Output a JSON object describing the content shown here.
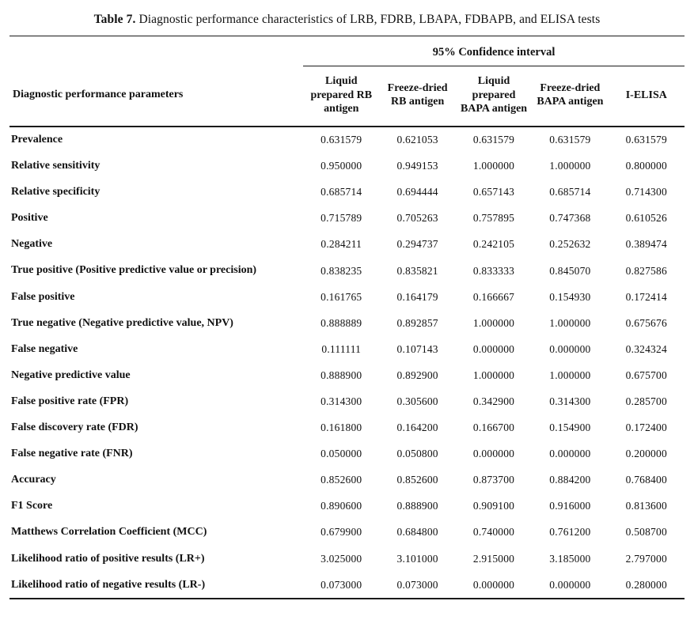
{
  "colors": {
    "text": "#111111",
    "background": "#ffffff",
    "rule": "#1a1a1a"
  },
  "caption": {
    "label": "Table 7.",
    "text": "Diagnostic performance characteristics of LRB, FDRB, LBAPA, FDBAPB, and ELISA tests"
  },
  "table": {
    "group_header": "95% Confidence interval",
    "param_header": "Diagnostic performance parameters",
    "columns": [
      "Liquid prepared RB antigen",
      "Freeze-dried RB antigen",
      "Liquid prepared BAPA antigen",
      "Freeze-dried BAPA antigen",
      "I-ELISA"
    ],
    "rows": [
      {
        "param": "Prevalence",
        "values": [
          "0.631579",
          "0.621053",
          "0.631579",
          "0.631579",
          "0.631579"
        ]
      },
      {
        "param": "Relative sensitivity",
        "values": [
          "0.950000",
          "0.949153",
          "1.000000",
          "1.000000",
          "0.800000"
        ]
      },
      {
        "param": "Relative specificity",
        "values": [
          "0.685714",
          "0.694444",
          "0.657143",
          "0.685714",
          "0.714300"
        ]
      },
      {
        "param": "Positive",
        "values": [
          "0.715789",
          "0.705263",
          "0.757895",
          "0.747368",
          "0.610526"
        ]
      },
      {
        "param": "Negative",
        "values": [
          "0.284211",
          "0.294737",
          "0.242105",
          "0.252632",
          "0.389474"
        ]
      },
      {
        "param": "True positive (Positive predictive value or precision)",
        "values": [
          "0.838235",
          "0.835821",
          "0.833333",
          "0.845070",
          "0.827586"
        ]
      },
      {
        "param": "False positive",
        "values": [
          "0.161765",
          "0.164179",
          "0.166667",
          "0.154930",
          "0.172414"
        ]
      },
      {
        "param": "True negative (Negative predictive value, NPV)",
        "values": [
          "0.888889",
          "0.892857",
          "1.000000",
          "1.000000",
          "0.675676"
        ]
      },
      {
        "param": "False negative",
        "values": [
          "0.111111",
          "0.107143",
          "0.000000",
          "0.000000",
          "0.324324"
        ]
      },
      {
        "param": "Negative predictive value",
        "values": [
          "0.888900",
          "0.892900",
          "1.000000",
          "1.000000",
          "0.675700"
        ]
      },
      {
        "param": "False positive rate (FPR)",
        "values": [
          "0.314300",
          "0.305600",
          "0.342900",
          "0.314300",
          "0.285700"
        ]
      },
      {
        "param": "False discovery rate (FDR)",
        "values": [
          "0.161800",
          "0.164200",
          "0.166700",
          "0.154900",
          "0.172400"
        ]
      },
      {
        "param": "False negative rate (FNR)",
        "values": [
          "0.050000",
          "0.050800",
          "0.000000",
          "0.000000",
          "0.200000"
        ]
      },
      {
        "param": "Accuracy",
        "values": [
          "0.852600",
          "0.852600",
          "0.873700",
          "0.884200",
          "0.768400"
        ]
      },
      {
        "param": "F1 Score",
        "values": [
          "0.890600",
          "0.888900",
          "0.909100",
          "0.916000",
          "0.813600"
        ]
      },
      {
        "param": "Matthews Correlation Coefficient (MCC)",
        "values": [
          "0.679900",
          "0.684800",
          "0.740000",
          "0.761200",
          "0.508700"
        ]
      },
      {
        "param": "Likelihood ratio of positive results (LR+)",
        "values": [
          "3.025000",
          "3.101000",
          "2.915000",
          "3.185000",
          "2.797000"
        ]
      },
      {
        "param": "Likelihood ratio of negative results (LR-)",
        "values": [
          "0.073000",
          "0.073000",
          "0.000000",
          "0.000000",
          "0.280000"
        ]
      }
    ]
  }
}
